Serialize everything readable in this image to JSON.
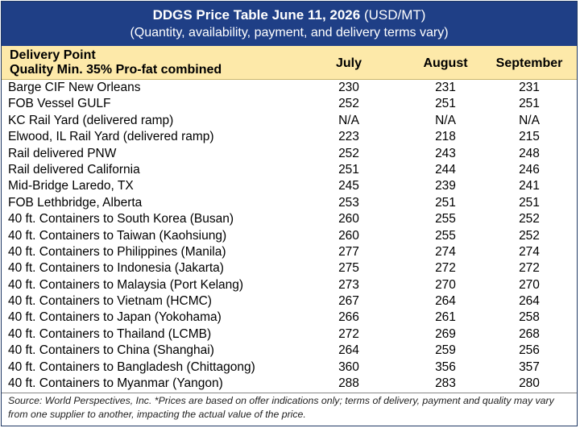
{
  "header": {
    "title_bold": "DDGS Price Table June 11, 2026",
    "title_unit": " (USD/MT)",
    "subtitle": "(Quantity, availability, payment, and delivery terms vary)"
  },
  "columns": {
    "delivery_point": "Delivery Point",
    "quality": "Quality Min. 35% Pro-fat combined",
    "months": [
      "July",
      "August",
      "September"
    ]
  },
  "rows": [
    {
      "name": "Barge CIF New Orleans",
      "values": [
        "230",
        "231",
        "231"
      ]
    },
    {
      "name": "FOB Vessel GULF",
      "values": [
        "252",
        "251",
        "251"
      ]
    },
    {
      "name": "KC Rail Yard (delivered ramp)",
      "values": [
        "N/A",
        "N/A",
        "N/A"
      ]
    },
    {
      "name": "Elwood, IL Rail Yard (delivered ramp)",
      "values": [
        "223",
        "218",
        "215"
      ]
    },
    {
      "name": "Rail delivered PNW",
      "values": [
        "252",
        "243",
        "248"
      ]
    },
    {
      "name": "Rail delivered California",
      "values": [
        "251",
        "244",
        "246"
      ]
    },
    {
      "name": "Mid-Bridge Laredo, TX",
      "values": [
        "245",
        "239",
        "241"
      ]
    },
    {
      "name": "FOB Lethbridge, Alberta",
      "values": [
        "253",
        "251",
        "251"
      ]
    },
    {
      "name": "40 ft. Containers to South Korea (Busan)",
      "values": [
        "260",
        "255",
        "252"
      ]
    },
    {
      "name": "40 ft. Containers to Taiwan (Kaohsiung)",
      "values": [
        "260",
        "255",
        "252"
      ]
    },
    {
      "name": "40 ft. Containers to Philippines (Manila)",
      "values": [
        "277",
        "274",
        "274"
      ]
    },
    {
      "name": "40 ft. Containers to Indonesia (Jakarta)",
      "values": [
        "275",
        "272",
        "272"
      ]
    },
    {
      "name": "40 ft. Containers to Malaysia (Port Kelang)",
      "values": [
        "273",
        "270",
        "270"
      ]
    },
    {
      "name": "40 ft. Containers to Vietnam (HCMC)",
      "values": [
        "267",
        "264",
        "264"
      ]
    },
    {
      "name": "40 ft. Containers to Japan (Yokohama)",
      "values": [
        "266",
        "261",
        "258"
      ]
    },
    {
      "name": "40 ft. Containers to Thailand (LCMB)",
      "values": [
        "272",
        "269",
        "268"
      ]
    },
    {
      "name": "40 ft. Containers to China (Shanghai)",
      "values": [
        "264",
        "259",
        "256"
      ]
    },
    {
      "name": "40 ft. Containers to Bangladesh (Chittagong)",
      "values": [
        "360",
        "356",
        "357"
      ]
    },
    {
      "name": "40 ft. Containers to Myanmar (Yangon)",
      "values": [
        "288",
        "283",
        "280"
      ]
    }
  ],
  "footer": {
    "source": "Source: World Perspectives, Inc. *Prices are based on offer indications only; terms of delivery, payment and quality may vary from one supplier to another, impacting the actual value of the price."
  },
  "colors": {
    "header_bg": "#1f3f86",
    "colhead_bg": "#fde9a9"
  }
}
